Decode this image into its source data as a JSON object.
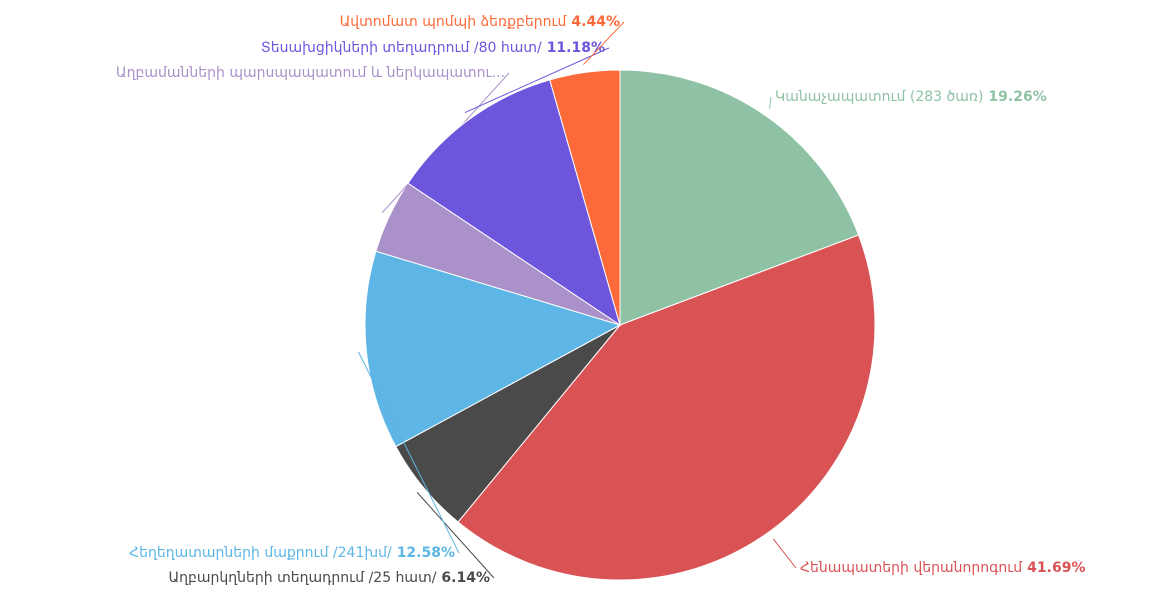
{
  "chart_data": {
    "type": "pie",
    "categories": [
      "Կանաչապատում (283 ծառ)",
      "Հենապատերի վերանորոգում",
      "Աղբարկղների տեղադրում /25 հատ/",
      "Հեղեղատարների մաքրում /241խմ/",
      "Աղբամանների պարսպապատում և ներկապատու...",
      "Տեսախցիկների տեղադրում /80 հատ/",
      "Ավտոմատ պոմպի ձեռքբերում"
    ],
    "values": [
      19.26,
      41.69,
      6.14,
      12.58,
      4.71,
      11.18,
      4.44
    ],
    "value_labels": [
      "19.26%",
      "41.69%",
      "6.14%",
      "12.58%",
      null,
      "11.18%",
      "4.44%"
    ],
    "colors": [
      "#8fc2a5",
      "#d95254",
      "#4a4a4a",
      "#5db6e5",
      "#aa91c9",
      "#6e56dc",
      "#fd6a3a"
    ]
  }
}
